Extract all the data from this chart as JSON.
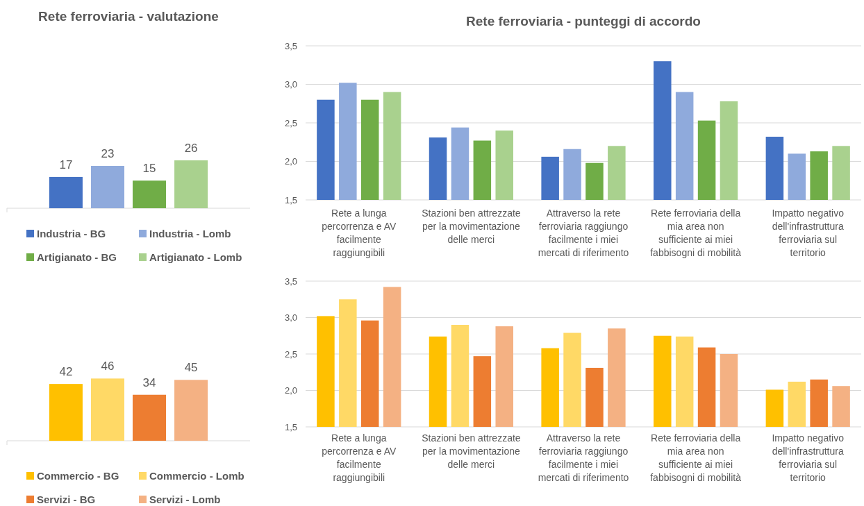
{
  "chart_data": [
    {
      "type": "bar",
      "title": "Rete ferroviaria - valutazione",
      "categories": [
        null
      ],
      "data_labels": true,
      "legend": "bottom",
      "series": [
        {
          "name": "Industria - BG",
          "color": "#4472c4",
          "values": [
            17
          ]
        },
        {
          "name": "Industria - Lomb",
          "color": "#8faadc",
          "values": [
            23
          ]
        },
        {
          "name": "Artigianato - BG",
          "color": "#70ad47",
          "values": [
            15
          ]
        },
        {
          "name": "Artigianato - Lomb",
          "color": "#a9d18e",
          "values": [
            26
          ]
        }
      ]
    },
    {
      "type": "bar",
      "title": "Rete ferroviaria - punteggi di accordo",
      "categories": [
        "Rete a lunga percorrenza e AV facilmente raggiungibili",
        "Stazioni ben attrezzate per la movimentazione delle merci",
        "Attraverso la rete ferroviaria raggiungo facilmente i miei mercati di riferimento",
        "Rete ferroviaria della mia area non sufficiente ai miei fabbisogni di mobilità",
        "Impatto negativo dell'infrastruttura ferroviaria sul territorio"
      ],
      "ylim": [
        1.5,
        3.5
      ],
      "yticks": [
        {
          "value": 1.5,
          "label": "1,5"
        },
        {
          "value": 2,
          "label": "2,0"
        },
        {
          "value": 2.5,
          "label": "2,5"
        },
        {
          "value": 3,
          "label": "3,0"
        },
        {
          "value": 3.5,
          "label": "3,5"
        }
      ],
      "grid": "y",
      "series": [
        {
          "color": "#4472c4",
          "values": [
            2.8,
            2.31,
            2.06,
            3.3,
            2.32
          ]
        },
        {
          "color": "#8faadc",
          "values": [
            3.02,
            2.44,
            2.16,
            2.9,
            2.1
          ]
        },
        {
          "color": "#70ad47",
          "values": [
            2.8,
            2.27,
            1.98,
            2.53,
            2.13
          ]
        },
        {
          "color": "#a9d18e",
          "values": [
            2.9,
            2.4,
            2.2,
            2.78,
            2.2
          ]
        }
      ]
    },
    {
      "type": "bar",
      "categories": [
        null
      ],
      "data_labels": true,
      "legend": "bottom",
      "series": [
        {
          "name": "Commercio - BG",
          "color": "#ffc000",
          "values": [
            42
          ]
        },
        {
          "name": "Commercio - Lomb",
          "color": "#ffd966",
          "values": [
            46
          ]
        },
        {
          "name": "Servizi - BG",
          "color": "#ed7d31",
          "values": [
            34
          ]
        },
        {
          "name": "Servizi - Lomb",
          "color": "#f4b183",
          "values": [
            45
          ]
        }
      ]
    },
    {
      "type": "bar",
      "categories": [
        "Rete a lunga percorrenza e AV facilmente raggiungibili",
        "Stazioni ben attrezzate per la movimentazione delle merci",
        "Attraverso la rete ferroviaria raggiungo facilmente i miei mercati di riferimento",
        "Rete ferroviaria della mia area non sufficiente ai miei fabbisogni di mobilità",
        "Impatto negativo dell'infrastruttura ferroviaria sul territorio"
      ],
      "ylim": [
        1.5,
        3.5
      ],
      "yticks": [
        {
          "value": 1.5,
          "label": "1,5"
        },
        {
          "value": 2,
          "label": "2,0"
        },
        {
          "value": 2.5,
          "label": "2,5"
        },
        {
          "value": 3,
          "label": "3,0"
        },
        {
          "value": 3.5,
          "label": "3,5"
        }
      ],
      "grid": "y",
      "series": [
        {
          "color": "#ffc000",
          "values": [
            3.02,
            2.74,
            2.58,
            2.75,
            2.01
          ]
        },
        {
          "color": "#ffd966",
          "values": [
            3.25,
            2.9,
            2.79,
            2.74,
            2.12
          ]
        },
        {
          "color": "#ed7d31",
          "values": [
            2.96,
            2.47,
            2.31,
            2.59,
            2.15
          ]
        },
        {
          "color": "#f4b183",
          "values": [
            3.42,
            2.88,
            2.85,
            2.5,
            2.06
          ]
        }
      ]
    }
  ]
}
